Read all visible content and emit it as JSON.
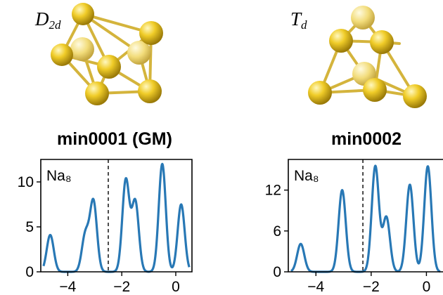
{
  "clusters": [
    {
      "symmetry": {
        "base": "D",
        "sub": "2d"
      },
      "title": "min0001 (GM)"
    },
    {
      "symmetry": {
        "base": "T",
        "sub": "d"
      },
      "title": "min0002"
    }
  ],
  "colors": {
    "atom": "#e8c020",
    "bond": "#d4b43c",
    "curve": "#2878b5",
    "fermi_line": "#000000"
  },
  "chart_data": [
    {
      "type": "line",
      "label": "Na₈",
      "fermi_level": -2.5,
      "xlim": [
        -5.0,
        0.6
      ],
      "ylim": [
        0,
        12.5
      ],
      "xticks": [
        -4,
        -2,
        0
      ],
      "xtick_labels": [
        "−4",
        "−2",
        "0"
      ],
      "yticks": [
        0,
        5,
        10
      ],
      "ytick_labels": [
        "0",
        "5",
        "10"
      ],
      "peaks": [
        {
          "x": -4.65,
          "y": 4.1
        },
        {
          "x": -3.35,
          "y": 4.1
        },
        {
          "x": -3.05,
          "y": 7.8
        },
        {
          "x": -1.85,
          "y": 10.2
        },
        {
          "x": -1.5,
          "y": 7.8
        },
        {
          "x": -0.5,
          "y": 12.0
        },
        {
          "x": 0.2,
          "y": 7.5
        }
      ]
    },
    {
      "type": "line",
      "label": "Na₈",
      "fermi_level": -2.3,
      "xlim": [
        -5.0,
        0.6
      ],
      "ylim": [
        0,
        16.5
      ],
      "xticks": [
        -4,
        -2,
        0
      ],
      "xtick_labels": [
        "−4",
        "−2",
        "0"
      ],
      "yticks": [
        0,
        6,
        12
      ],
      "ytick_labels": [
        "0",
        "6",
        "12"
      ],
      "peaks": [
        {
          "x": -4.55,
          "y": 4.1
        },
        {
          "x": -3.05,
          "y": 12.0
        },
        {
          "x": -1.85,
          "y": 15.5
        },
        {
          "x": -1.45,
          "y": 8.0
        },
        {
          "x": -0.6,
          "y": 12.8
        },
        {
          "x": 0.05,
          "y": 15.5
        }
      ]
    }
  ]
}
